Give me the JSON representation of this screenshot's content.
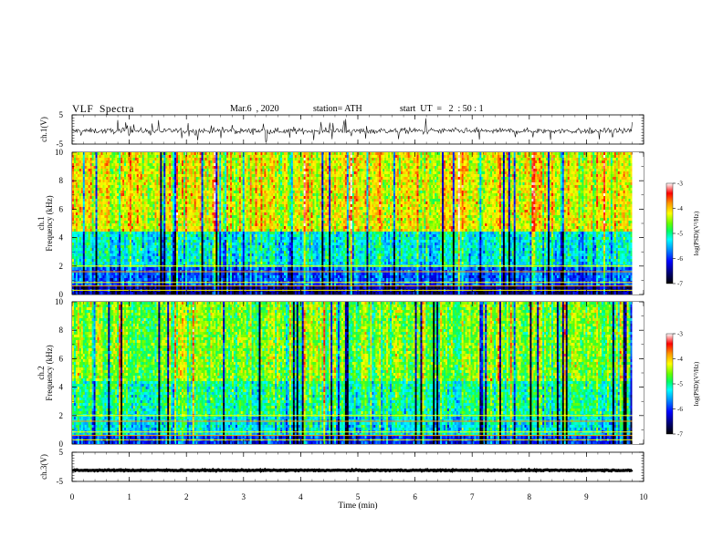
{
  "header": {
    "title": "VLF  Spectra",
    "date": "Mar.6  , 2020",
    "station": "station= ATH",
    "start_ut": "start  UT  =   2  : 50 : 1"
  },
  "chart_data": [
    {
      "type": "line",
      "name": "ch1-waveform",
      "ylabel": "ch.1(V)",
      "ylim": [
        -5,
        5
      ],
      "y_ticks": [
        "5",
        "-5"
      ],
      "x_range_min": [
        0,
        9.8
      ],
      "description_values": {
        "mean_level": -0.5,
        "noise_spread": 1.5
      }
    },
    {
      "type": "heatmap",
      "name": "ch1-spectrogram",
      "ylabel": "ch.1\nFrequency  (kHz)",
      "ylabel_lines": [
        "ch.1",
        "Frequency  (kHz)"
      ],
      "ylim": [
        0,
        10
      ],
      "y_ticks": [
        "0",
        "2",
        "4",
        "6",
        "8",
        "10"
      ],
      "x_range_min": [
        0,
        9.8
      ],
      "colorbar": {
        "label": "log(PSD)(V²/Hz)",
        "range": [
          -7,
          -3
        ],
        "ticks": [
          "-3",
          "-4",
          "-5",
          "-6",
          "-7"
        ]
      },
      "bands": [
        {
          "f_khz": [
            0,
            0.5
          ],
          "level": -6.5
        },
        {
          "f_khz": [
            0.5,
            2.0
          ],
          "level": -5.8
        },
        {
          "f_khz": [
            2.0,
            4.5
          ],
          "level": -5.2
        },
        {
          "f_khz": [
            4.5,
            10
          ],
          "level": -4.2
        }
      ]
    },
    {
      "type": "heatmap",
      "name": "ch2-spectrogram",
      "ylabel_lines": [
        "ch.2",
        "Frequency  (kHz)"
      ],
      "ylim": [
        0,
        10
      ],
      "y_ticks": [
        "0",
        "2",
        "4",
        "6",
        "8",
        "10"
      ],
      "x_range_min": [
        0,
        9.8
      ],
      "colorbar": {
        "label": "log(PSD)(V²/Hz)",
        "range": [
          -7,
          -3
        ],
        "ticks": [
          "-3",
          "-4",
          "-5",
          "-6",
          "-7"
        ]
      },
      "bands": [
        {
          "f_khz": [
            0,
            0.5
          ],
          "level": -6.0
        },
        {
          "f_khz": [
            0.5,
            2.0
          ],
          "level": -5.3
        },
        {
          "f_khz": [
            2.0,
            4.5
          ],
          "level": -5.0
        },
        {
          "f_khz": [
            4.5,
            10
          ],
          "level": -4.6
        }
      ]
    },
    {
      "type": "line",
      "name": "ch3-waveform",
      "ylabel": "ch.3(V)",
      "ylim": [
        -5,
        5
      ],
      "y_ticks": [
        "5",
        "-5"
      ],
      "x_range_min": [
        0,
        9.8
      ],
      "description_values": {
        "mean_level": -1.2,
        "noise_spread": 0.3
      }
    }
  ],
  "x_axis": {
    "label": "Time  (min)",
    "ticks": [
      "0",
      "1",
      "2",
      "3",
      "4",
      "5",
      "6",
      "7",
      "8",
      "9",
      "10"
    ]
  },
  "colors": {
    "colormap": [
      "#000000",
      "#00006e",
      "#0000ff",
      "#00aaff",
      "#00ffff",
      "#00ff66",
      "#66ff00",
      "#ffff00",
      "#ff9900",
      "#ff0000",
      "#ffffff"
    ]
  }
}
